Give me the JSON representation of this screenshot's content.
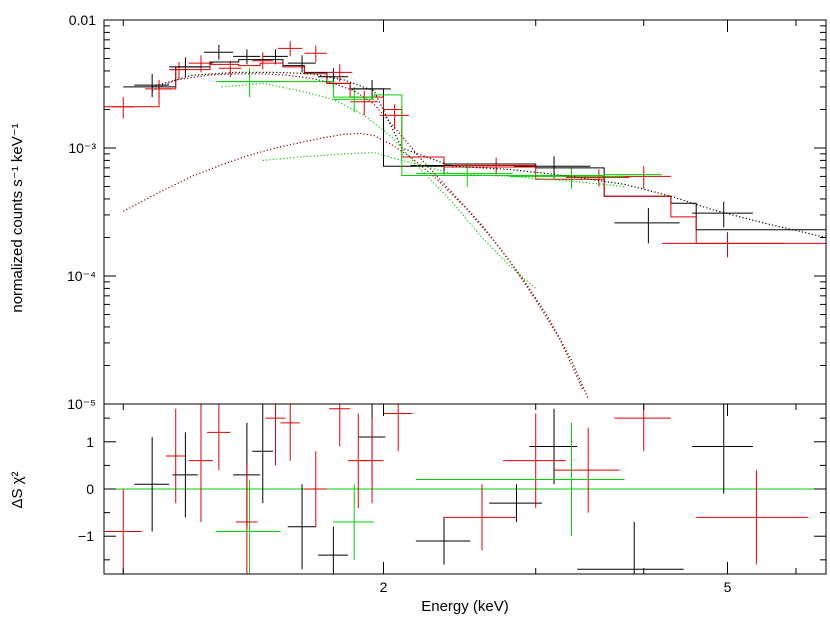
{
  "chart_data": [
    {
      "type": "scatter",
      "panel": "spectrum",
      "ylabel": "normalized counts s⁻¹ keV⁻¹",
      "xscale": "log",
      "yscale": "log",
      "xlim": [
        0.95,
        6.5
      ],
      "ylim": [
        1e-05,
        0.01
      ],
      "ytick_labels": [
        {
          "value": 0.01,
          "label": "0.01"
        },
        {
          "value": 0.001,
          "label": "10⁻³"
        },
        {
          "value": 0.0001,
          "label": "10⁻⁴"
        },
        {
          "value": 1e-05,
          "label": "10⁻⁵"
        }
      ],
      "colors": {
        "black": "#000000",
        "red": "#e00000",
        "green": "#00d000",
        "darkred": "#800000"
      },
      "series": [
        {
          "name": "black data",
          "color": "black",
          "kind": "errorbar",
          "points": [
            {
              "x": 1.08,
              "xerr": 0.05,
              "y": 0.0031,
              "yerr": [
                0.0025,
                0.0038
              ]
            },
            {
              "x": 1.18,
              "xerr": 0.05,
              "y": 0.0043,
              "yerr": [
                0.0036,
                0.0051
              ]
            },
            {
              "x": 1.29,
              "xerr": 0.05,
              "y": 0.0056,
              "yerr": [
                0.0049,
                0.0064
              ]
            },
            {
              "x": 1.39,
              "xerr": 0.05,
              "y": 0.0052,
              "yerr": [
                0.0045,
                0.0059
              ]
            },
            {
              "x": 1.5,
              "xerr": 0.05,
              "y": 0.0052,
              "yerr": [
                0.0045,
                0.0059
              ]
            },
            {
              "x": 1.61,
              "xerr": 0.06,
              "y": 0.0046,
              "yerr": [
                0.0039,
                0.0053
              ]
            },
            {
              "x": 1.75,
              "xerr": 0.07,
              "y": 0.0036,
              "yerr": [
                0.003,
                0.0042
              ]
            },
            {
              "x": 1.94,
              "xerr": 0.1,
              "y": 0.0029,
              "yerr": [
                0.0024,
                0.0034
              ]
            },
            {
              "x": 2.35,
              "xerr": 0.2,
              "y": 0.00073,
              "yerr": [
                0.00062,
                0.00084
              ]
            },
            {
              "x": 3.15,
              "xerr": 0.32,
              "y": 0.00072,
              "yerr": [
                0.00058,
                0.00086
              ]
            },
            {
              "x": 4.05,
              "xerr": 0.35,
              "y": 0.00026,
              "yerr": [
                0.00018,
                0.00034
              ]
            },
            {
              "x": 4.95,
              "xerr": 0.4,
              "y": 0.00031,
              "yerr": [
                0.00024,
                0.00038
              ]
            }
          ]
        },
        {
          "name": "red data",
          "color": "red",
          "kind": "errorbar",
          "points": [
            {
              "x": 1.0,
              "xerr": 0.03,
              "y": 0.0021,
              "yerr": [
                0.0017,
                0.0025
              ]
            },
            {
              "x": 1.1,
              "xerr": 0.04,
              "y": 0.0029,
              "yerr": [
                0.0024,
                0.0034
              ]
            },
            {
              "x": 1.16,
              "xerr": 0.03,
              "y": 0.0041,
              "yerr": [
                0.0035,
                0.0047
              ]
            },
            {
              "x": 1.23,
              "xerr": 0.04,
              "y": 0.0046,
              "yerr": [
                0.0039,
                0.0053
              ]
            },
            {
              "x": 1.33,
              "xerr": 0.04,
              "y": 0.0042,
              "yerr": [
                0.0036,
                0.0048
              ]
            },
            {
              "x": 1.45,
              "xerr": 0.04,
              "y": 0.0048,
              "yerr": [
                0.0041,
                0.0056
              ]
            },
            {
              "x": 1.56,
              "xerr": 0.05,
              "y": 0.006,
              "yerr": [
                0.0052,
                0.0068
              ]
            },
            {
              "x": 1.67,
              "xerr": 0.05,
              "y": 0.0055,
              "yerr": [
                0.0047,
                0.0063
              ]
            },
            {
              "x": 1.78,
              "xerr": 0.06,
              "y": 0.0039,
              "yerr": [
                0.0033,
                0.0045
              ]
            },
            {
              "x": 1.9,
              "xerr": 0.07,
              "y": 0.0023,
              "yerr": [
                0.0018,
                0.0028
              ]
            },
            {
              "x": 2.06,
              "xerr": 0.08,
              "y": 0.0018,
              "yerr": [
                0.0014,
                0.0022
              ]
            },
            {
              "x": 2.7,
              "xerr": 0.3,
              "y": 0.00073,
              "yerr": [
                0.00062,
                0.00084
              ]
            },
            {
              "x": 3.55,
              "xerr": 0.3,
              "y": 0.00059,
              "yerr": [
                0.0005,
                0.00068
              ]
            },
            {
              "x": 4.0,
              "xerr": 0.3,
              "y": 0.0006,
              "yerr": [
                0.00048,
                0.00072
              ]
            },
            {
              "x": 5.0,
              "xerr": 0.8,
              "y": 0.00018,
              "yerr": [
                0.00014,
                0.00022
              ]
            }
          ]
        },
        {
          "name": "green data",
          "color": "green",
          "kind": "errorbar",
          "points": [
            {
              "x": 1.4,
              "xerr": 0.12,
              "y": 0.0033,
              "yerr": [
                0.0025,
                0.0042
              ]
            },
            {
              "x": 1.85,
              "xerr": 0.1,
              "y": 0.0024,
              "yerr": [
                0.0019,
                0.003
              ]
            },
            {
              "x": 2.5,
              "xerr": 0.32,
              "y": 0.00063,
              "yerr": [
                0.0005,
                0.00076
              ]
            },
            {
              "x": 3.3,
              "xerr": 0.5,
              "y": 0.0006,
              "yerr": [
                0.00048,
                0.00072
              ]
            }
          ]
        },
        {
          "name": "black model",
          "color": "black",
          "kind": "step",
          "edges": [
            1.0,
            1.15,
            1.26,
            1.36,
            1.44,
            1.53,
            1.62,
            1.72,
            1.83,
            2.0,
            2.1,
            2.35,
            3.0,
            3.6,
            4.3,
            4.6,
            6.5
          ],
          "values": [
            0.003,
            0.0043,
            0.0047,
            0.0049,
            0.0049,
            0.0044,
            0.0039,
            0.0032,
            0.0029,
            0.00072,
            0.00072,
            0.00075,
            0.0007,
            0.00042,
            0.00037,
            0.00023
          ]
        },
        {
          "name": "red model",
          "color": "red",
          "kind": "step",
          "edges": [
            0.95,
            1.1,
            1.15,
            1.26,
            1.36,
            1.44,
            1.53,
            1.62,
            1.72,
            1.83,
            2.0,
            2.1,
            2.35,
            3.0,
            3.6,
            4.3,
            4.6,
            6.5
          ],
          "values": [
            0.0021,
            0.0029,
            0.0041,
            0.0045,
            0.0044,
            0.0046,
            0.0043,
            0.0038,
            0.0032,
            0.0025,
            0.002,
            0.00085,
            0.00071,
            0.00057,
            0.00042,
            0.00029,
            0.00018
          ]
        },
        {
          "name": "green model",
          "color": "green",
          "kind": "step",
          "edges": [
            1.3,
            1.58,
            1.75,
            1.95,
            2.1,
            2.35,
            3.0,
            3.6,
            4.2
          ],
          "values": [
            0.0033,
            0.0033,
            0.0025,
            0.0026,
            0.00061,
            0.00061,
            0.00061,
            0.00062
          ]
        },
        {
          "name": "black/red component 1 (soft)",
          "color": "darkred",
          "kind": "dotted",
          "x": [
            1.08,
            1.15,
            1.25,
            1.35,
            1.45,
            1.55,
            1.65,
            1.75,
            1.85,
            1.95,
            2.05,
            2.2,
            2.4,
            2.6,
            2.8,
            3.0,
            3.2,
            3.4
          ],
          "y": [
            0.0028,
            0.0034,
            0.0037,
            0.0038,
            0.0038,
            0.0037,
            0.0035,
            0.0032,
            0.0028,
            0.0022,
            0.0015,
            0.00085,
            0.00045,
            0.00025,
            0.00013,
            6.5e-05,
            3.2e-05,
            1.3e-05
          ]
        },
        {
          "name": "black/red component 2 (hard)",
          "color": "darkred",
          "kind": "dotted",
          "x": [
            1.0,
            1.1,
            1.2,
            1.3,
            1.4,
            1.5,
            1.6,
            1.7,
            1.8,
            1.88,
            1.95,
            2.05,
            2.15,
            2.3,
            2.5,
            2.7,
            2.9,
            3.1,
            3.3,
            3.45
          ],
          "y": [
            0.00032,
            0.00045,
            0.0006,
            0.00074,
            0.00088,
            0.001,
            0.0011,
            0.0012,
            0.00128,
            0.0013,
            0.00125,
            0.00105,
            0.00085,
            0.00058,
            0.00033,
            0.00018,
            9.5e-05,
            4.8e-05,
            2.2e-05,
            1.1e-05
          ]
        },
        {
          "name": "black/red total model",
          "color": "black",
          "kind": "dotted",
          "x": [
            1.08,
            1.2,
            1.35,
            1.5,
            1.65,
            1.8,
            1.95,
            2.1,
            2.4,
            2.8,
            3.3,
            3.8,
            4.3,
            4.8,
            5.5,
            6.5
          ],
          "y": [
            0.003,
            0.0037,
            0.0039,
            0.0039,
            0.0038,
            0.0034,
            0.0028,
            0.001,
            0.00072,
            0.00068,
            0.0006,
            0.00052,
            0.00042,
            0.00033,
            0.00026,
            0.0002
          ]
        },
        {
          "name": "green component 1",
          "color": "green",
          "kind": "dotted",
          "x": [
            1.3,
            1.45,
            1.6,
            1.75,
            1.9,
            2.05,
            2.2,
            2.4,
            2.6,
            2.8,
            3.0
          ],
          "y": [
            0.003,
            0.0032,
            0.0028,
            0.0024,
            0.0018,
            0.0012,
            0.0007,
            0.00038,
            0.0002,
            0.00012,
            8e-05
          ]
        },
        {
          "name": "green component 2",
          "color": "green",
          "kind": "dotted",
          "x": [
            1.45,
            1.6,
            1.8,
            1.95,
            2.1,
            2.4,
            2.8,
            3.3,
            3.8
          ],
          "y": [
            0.0008,
            0.00085,
            0.0009,
            0.00092,
            0.0008,
            0.00063,
            0.0006,
            0.00055,
            0.0005
          ]
        }
      ]
    },
    {
      "type": "scatter",
      "panel": "residuals",
      "ylabel": "ΔS χ²",
      "xlabel": "Energy (keV)",
      "xscale": "log",
      "xlim": [
        0.95,
        6.5
      ],
      "ylim": [
        -1.8,
        1.8
      ],
      "yticks": [
        -1,
        0,
        1
      ],
      "ytick_labels": [
        "−1",
        "0",
        "1"
      ],
      "xtick_labels": [
        {
          "value": 2,
          "label": "2"
        },
        {
          "value": 5,
          "label": "5"
        }
      ],
      "zero_line_color": "green",
      "series": [
        {
          "name": "black residuals",
          "color": "black",
          "points": [
            {
              "x": 1.08,
              "xerr": 0.05,
              "y": 0.1,
              "yerr": 1.0
            },
            {
              "x": 1.18,
              "xerr": 0.04,
              "y": 0.3,
              "yerr": 0.9
            },
            {
              "x": 1.39,
              "xerr": 0.05,
              "y": 0.3,
              "yerr": 1.1
            },
            {
              "x": 1.45,
              "xerr": 0.04,
              "y": 0.8,
              "yerr": 1.1
            },
            {
              "x": 1.61,
              "xerr": 0.06,
              "y": -0.8,
              "yerr": 0.9
            },
            {
              "x": 1.75,
              "xerr": 0.07,
              "y": -1.4,
              "yerr": 0.6
            },
            {
              "x": 1.94,
              "xerr": 0.07,
              "y": 1.1,
              "yerr": 1.0
            },
            {
              "x": 2.35,
              "xerr": 0.17,
              "y": -1.1,
              "yerr": 0.5
            },
            {
              "x": 2.85,
              "xerr": 0.2,
              "y": -0.3,
              "yerr": 0.4
            },
            {
              "x": 3.15,
              "xerr": 0.2,
              "y": 0.9,
              "yerr": 0.8
            },
            {
              "x": 3.9,
              "xerr": 0.55,
              "y": -1.7,
              "yerr": 1.0
            },
            {
              "x": 4.95,
              "xerr": 0.4,
              "y": 0.9,
              "yerr": 1.0
            }
          ]
        },
        {
          "name": "red residuals",
          "color": "red",
          "points": [
            {
              "x": 1.0,
              "xerr": 0.05,
              "y": -0.9,
              "yerr": 0.9
            },
            {
              "x": 1.15,
              "xerr": 0.03,
              "y": 0.7,
              "yerr": 1.0
            },
            {
              "x": 1.23,
              "xerr": 0.04,
              "y": 0.6,
              "yerr": 1.3
            },
            {
              "x": 1.29,
              "xerr": 0.04,
              "y": 1.2,
              "yerr": 0.8
            },
            {
              "x": 1.39,
              "xerr": 0.04,
              "y": -0.7,
              "yerr": 1.2
            },
            {
              "x": 1.5,
              "xerr": 0.04,
              "y": 1.5,
              "yerr": 1.0
            },
            {
              "x": 1.56,
              "xerr": 0.04,
              "y": 1.4,
              "yerr": 0.8
            },
            {
              "x": 1.67,
              "xerr": 0.05,
              "y": 0.0,
              "yerr": 0.8
            },
            {
              "x": 1.78,
              "xerr": 0.05,
              "y": 1.7,
              "yerr": 0.8
            },
            {
              "x": 1.87,
              "xerr": 0.05,
              "y": 0.6,
              "yerr": 1.0
            },
            {
              "x": 1.94,
              "xerr": 0.06,
              "y": 0.6,
              "yerr": 0.9
            },
            {
              "x": 2.08,
              "xerr": 0.08,
              "y": 1.6,
              "yerr": 0.8
            },
            {
              "x": 2.6,
              "xerr": 0.25,
              "y": -0.6,
              "yerr": 0.7
            },
            {
              "x": 3.0,
              "xerr": 0.25,
              "y": 0.6,
              "yerr": 1.0
            },
            {
              "x": 3.45,
              "xerr": 0.3,
              "y": 0.4,
              "yerr": 0.9
            },
            {
              "x": 4.0,
              "xerr": 0.3,
              "y": 1.5,
              "yerr": 0.7
            },
            {
              "x": 5.4,
              "xerr": 0.8,
              "y": -0.6,
              "yerr": 1.0
            }
          ]
        },
        {
          "name": "green residuals",
          "color": "green",
          "points": [
            {
              "x": 1.4,
              "xerr": 0.12,
              "y": -0.9,
              "yerr": 1.1
            },
            {
              "x": 1.85,
              "xerr": 0.1,
              "y": -0.7,
              "yerr": 0.8
            },
            {
              "x": 2.5,
              "xerr": 0.32,
              "y": 0.2,
              "yerr": 0.0
            },
            {
              "x": 3.3,
              "xerr": 0.5,
              "y": 0.2,
              "yerr": 1.2
            }
          ]
        }
      ]
    }
  ]
}
